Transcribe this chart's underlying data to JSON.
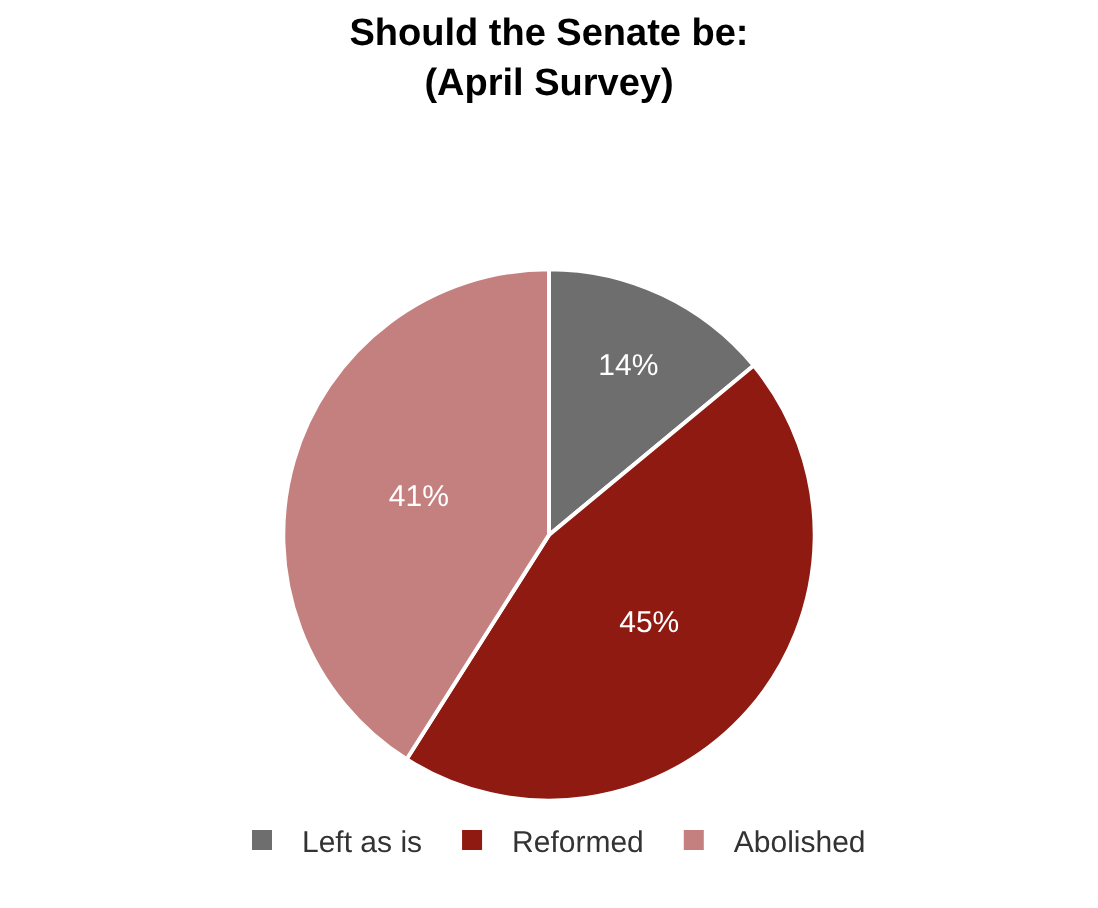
{
  "chart_data": {
    "type": "pie",
    "title": "Should the Senate be:",
    "subtitle": "(April Survey)",
    "categories": [
      "Left as is",
      "Reformed",
      "Abolished"
    ],
    "values": [
      14,
      45,
      41
    ],
    "value_labels": [
      "14%",
      "45%",
      "41%"
    ],
    "colors": [
      "#6e6e6e",
      "#8e1a12",
      "#c47f7f"
    ],
    "legend": "bottom"
  }
}
